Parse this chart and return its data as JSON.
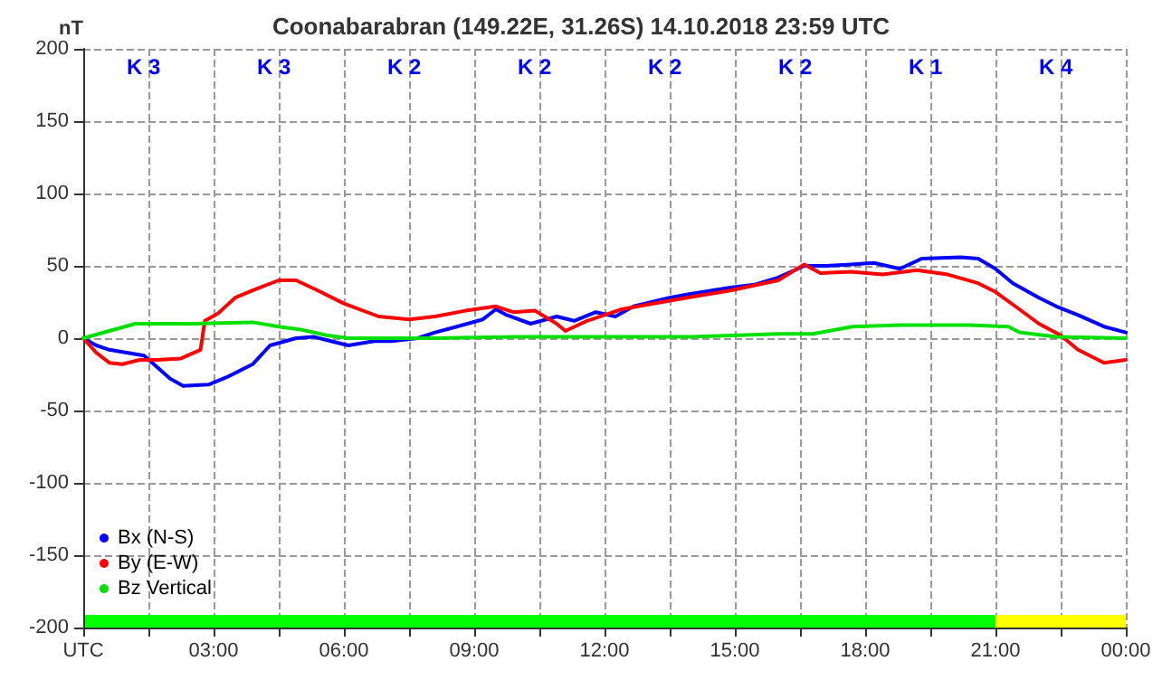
{
  "chart_data": {
    "type": "line",
    "title": "Coonabarabran (149.22E, 31.26S) 14.10.2018 23:59 UTC",
    "ylabel": "nT",
    "annotations": [
      "K 3",
      "K 3",
      "K 2",
      "K 2",
      "K 2",
      "K 2",
      "K 1",
      "K 4"
    ],
    "xlim": [
      0,
      24
    ],
    "xticks": [
      {
        "value": 0,
        "label": "UTC"
      },
      {
        "value": 1.5,
        "label": null
      },
      {
        "value": 3,
        "label": "03:00"
      },
      {
        "value": 4.5,
        "label": null
      },
      {
        "value": 6,
        "label": "06:00"
      },
      {
        "value": 7.5,
        "label": null
      },
      {
        "value": 9,
        "label": "09:00"
      },
      {
        "value": 10.5,
        "label": null
      },
      {
        "value": 12,
        "label": "12:00"
      },
      {
        "value": 13.5,
        "label": null
      },
      {
        "value": 15,
        "label": "15:00"
      },
      {
        "value": 16.5,
        "label": null
      },
      {
        "value": 18,
        "label": "18:00"
      },
      {
        "value": 19.5,
        "label": null
      },
      {
        "value": 21,
        "label": "21:00"
      },
      {
        "value": 22.5,
        "label": null
      },
      {
        "value": 24,
        "label": "00:00"
      }
    ],
    "ylim": [
      -200,
      200
    ],
    "yticks": [
      -200,
      -150,
      -100,
      -50,
      0,
      50,
      100,
      150,
      200
    ],
    "grid": true,
    "legend": "bottom left",
    "marker": "none",
    "line_style": "solid",
    "series": [
      {
        "name": "Bx (N-S)",
        "color": "#0000ff",
        "x": [
          0,
          0.3,
          0.6,
          1.0,
          1.4,
          2.0,
          2.3,
          2.9,
          3.3,
          3.9,
          4.3,
          4.9,
          5.3,
          5.7,
          6.1,
          6.7,
          7.1,
          7.7,
          8.1,
          8.6,
          9.2,
          9.5,
          9.75,
          10.3,
          10.9,
          11.3,
          11.8,
          12.25,
          12.67,
          13.5,
          14.05,
          14.9,
          15.45,
          16.0,
          16.6,
          17.1,
          17.67,
          18.2,
          18.8,
          19.3,
          20.2,
          20.6,
          21.0,
          21.4,
          22.0,
          22.4,
          22.9,
          23.5,
          24
        ],
        "values": [
          0,
          -5,
          -8,
          -10,
          -12,
          -28,
          -33,
          -32,
          -27,
          -18,
          -5,
          0,
          1,
          -2,
          -5,
          -2,
          -2,
          0,
          4,
          8,
          13,
          20,
          16,
          10,
          15,
          12,
          18,
          15,
          22,
          28,
          31,
          35,
          37,
          42,
          50,
          50,
          51,
          52,
          48,
          55,
          56,
          55,
          48,
          38,
          28,
          22,
          16,
          8,
          4
        ]
      },
      {
        "name": "By (E-W)",
        "color": "#ff0000",
        "x": [
          0,
          0.3,
          0.6,
          0.9,
          1.3,
          1.7,
          2.25,
          2.7,
          2.8,
          3.1,
          3.5,
          3.9,
          4.5,
          4.9,
          5.4,
          6.0,
          6.8,
          7.5,
          8.1,
          8.8,
          9.5,
          9.9,
          10.4,
          10.9,
          11.1,
          11.6,
          12.0,
          12.4,
          12.94,
          13.9,
          14.9,
          16.0,
          16.6,
          16.97,
          17.67,
          18.4,
          19.2,
          19.9,
          20.6,
          21.0,
          21.55,
          22.0,
          22.5,
          22.9,
          23.5,
          24
        ],
        "values": [
          0,
          -10,
          -17,
          -18,
          -15,
          -15,
          -14,
          -8,
          12,
          17,
          28,
          33,
          40,
          40,
          33,
          24,
          15,
          13,
          15,
          19,
          22,
          18,
          19,
          10,
          5,
          12,
          16,
          20,
          23,
          28,
          33,
          40,
          51,
          45,
          46,
          44,
          47,
          44,
          38,
          32,
          20,
          10,
          2,
          -8,
          -17,
          -15
        ]
      },
      {
        "name": "Bz Vertical",
        "color": "#00e000",
        "x": [
          0,
          0.6,
          1.2,
          2.5,
          3.9,
          4.5,
          5.0,
          5.6,
          6.1,
          8,
          10,
          12,
          14,
          16,
          16.8,
          17.7,
          18.8,
          20.4,
          21.3,
          21.55,
          22.4,
          24
        ],
        "values": [
          0,
          5,
          10,
          10,
          11,
          8,
          6,
          2,
          0,
          0,
          1,
          1,
          1,
          3,
          3,
          8,
          9,
          9,
          8,
          4,
          1,
          0
        ]
      }
    ]
  }
}
